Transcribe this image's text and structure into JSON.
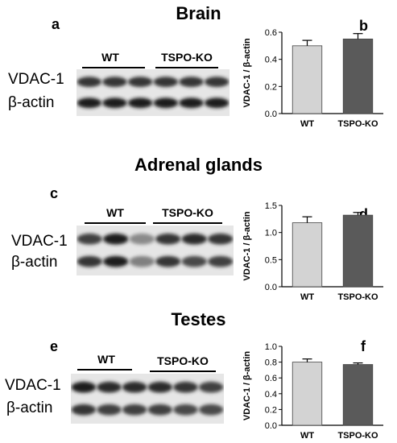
{
  "sections": [
    {
      "title": "Brain",
      "blot_letter": "a",
      "chart_letter": "b",
      "groups": [
        "WT",
        "TSPO-KO"
      ],
      "rows": [
        "VDAC-1",
        "β-actin"
      ],
      "bands": {
        "vdac": [
          0.85,
          0.85,
          0.85,
          0.85,
          0.85,
          0.85
        ],
        "actin": [
          0.95,
          0.95,
          0.95,
          0.95,
          0.95,
          0.95
        ]
      }
    },
    {
      "title": "Adrenal glands",
      "blot_letter": "c",
      "chart_letter": "d",
      "groups": [
        "WT",
        "TSPO-KO"
      ],
      "rows": [
        "VDAC-1",
        "β-actin"
      ],
      "bands": {
        "vdac": [
          0.8,
          0.95,
          0.45,
          0.85,
          0.9,
          0.85
        ],
        "actin": [
          0.85,
          0.95,
          0.5,
          0.85,
          0.75,
          0.8
        ]
      }
    },
    {
      "title": "Testes",
      "blot_letter": "e",
      "chart_letter": "f",
      "groups": [
        "WT",
        "TSPO-KO"
      ],
      "rows": [
        "VDAC-1",
        "β-actin"
      ],
      "bands": {
        "vdac": [
          0.95,
          0.9,
          0.9,
          0.9,
          0.85,
          0.8
        ],
        "actin": [
          0.85,
          0.8,
          0.8,
          0.8,
          0.75,
          0.75
        ]
      }
    }
  ],
  "chart_data": [
    {
      "type": "bar",
      "ylabel": "VDAC-1 / β-actin",
      "categories": [
        "WT",
        "TSPO-KO"
      ],
      "values": [
        0.5,
        0.55
      ],
      "errors": [
        0.04,
        0.04
      ],
      "ylim": [
        0,
        0.6
      ],
      "yticks": [
        "0.0",
        "0.2",
        "0.4",
        "0.6"
      ],
      "colors": [
        "#d3d3d3",
        "#5a5a5a"
      ]
    },
    {
      "type": "bar",
      "ylabel": "VDAC-1 / β-actin",
      "categories": [
        "WT",
        "TSPO-KO"
      ],
      "values": [
        1.18,
        1.32
      ],
      "errors": [
        0.11,
        0.05
      ],
      "ylim": [
        0,
        1.5
      ],
      "yticks": [
        "0.0",
        "0.5",
        "1.0",
        "1.5"
      ],
      "colors": [
        "#d3d3d3",
        "#5a5a5a"
      ]
    },
    {
      "type": "bar",
      "ylabel": "VDAC-1 / β-actin",
      "categories": [
        "WT",
        "TSPO-KO"
      ],
      "values": [
        0.8,
        0.77
      ],
      "errors": [
        0.04,
        0.02
      ],
      "ylim": [
        0,
        1.0
      ],
      "yticks": [
        "0.0",
        "0.2",
        "0.4",
        "0.6",
        "0.8",
        "1.0"
      ],
      "colors": [
        "#d3d3d3",
        "#5a5a5a"
      ]
    }
  ]
}
